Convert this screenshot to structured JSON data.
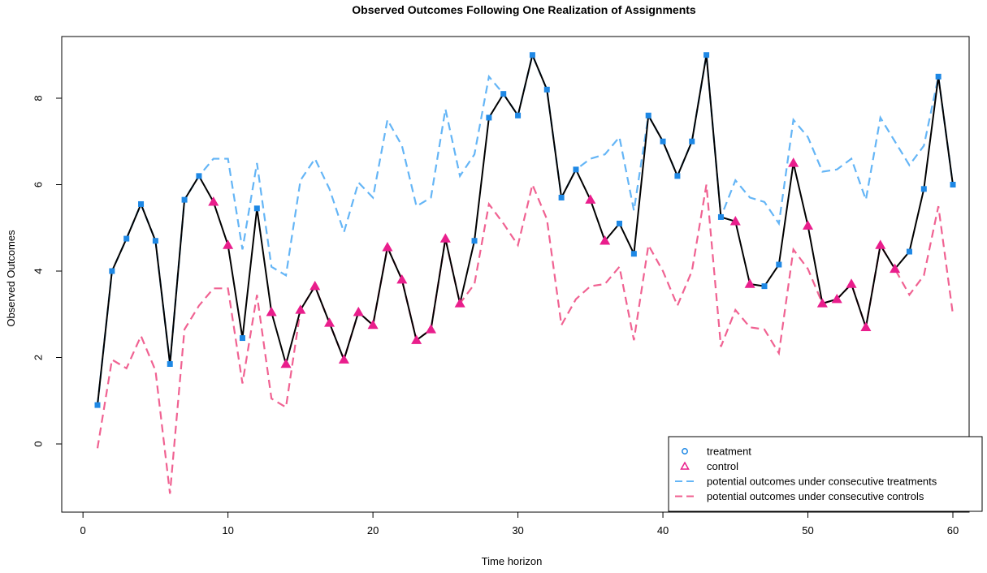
{
  "chart_data": {
    "type": "line",
    "title": "Observed Outcomes Following One Realization of Assignments",
    "xlabel": "Time horizon",
    "ylabel": "Observed Outcomes",
    "xlim": [
      1,
      60
    ],
    "ylim": [
      -1.2,
      9.1
    ],
    "x_ticks": [
      0,
      10,
      20,
      30,
      40,
      50,
      60
    ],
    "y_ticks": [
      0,
      2,
      4,
      6,
      8
    ],
    "grid": false,
    "legend_position": "bottom-right",
    "colors": {
      "treatment": "#1e88e5",
      "control": "#e91e8c",
      "potential_treatment": "#64b5f6",
      "potential_control": "#f06292",
      "observed_line": "#000000"
    },
    "x": [
      1,
      2,
      3,
      4,
      5,
      6,
      7,
      8,
      9,
      10,
      11,
      12,
      13,
      14,
      15,
      16,
      17,
      18,
      19,
      20,
      21,
      22,
      23,
      24,
      25,
      26,
      27,
      28,
      29,
      30,
      31,
      32,
      33,
      34,
      35,
      36,
      37,
      38,
      39,
      40,
      41,
      42,
      43,
      44,
      45,
      46,
      47,
      48,
      49,
      50,
      51,
      52,
      53,
      54,
      55,
      56,
      57,
      58,
      59,
      60
    ],
    "assignment": [
      "T",
      "T",
      "T",
      "T",
      "T",
      "T",
      "T",
      "T",
      "C",
      "C",
      "T",
      "T",
      "C",
      "C",
      "C",
      "C",
      "C",
      "C",
      "C",
      "C",
      "C",
      "C",
      "C",
      "C",
      "C",
      "C",
      "T",
      "T",
      "T",
      "T",
      "T",
      "T",
      "T",
      "T",
      "C",
      "C",
      "T",
      "T",
      "T",
      "T",
      "T",
      "T",
      "T",
      "T",
      "C",
      "C",
      "T",
      "T",
      "C",
      "C",
      "C",
      "C",
      "C",
      "C",
      "C",
      "C",
      "T",
      "T",
      "T",
      "T"
    ],
    "observed": [
      0.9,
      4.0,
      4.75,
      5.55,
      4.7,
      1.85,
      5.65,
      6.2,
      5.6,
      4.6,
      2.45,
      5.45,
      3.05,
      1.85,
      3.1,
      3.65,
      2.8,
      1.95,
      3.05,
      2.75,
      4.55,
      3.8,
      2.4,
      2.65,
      4.75,
      3.25,
      4.7,
      7.55,
      8.1,
      7.6,
      9.0,
      8.2,
      5.7,
      6.35,
      5.65,
      4.7,
      5.1,
      4.4,
      7.6,
      7.0,
      6.2,
      7.0,
      9.0,
      5.25,
      5.15,
      3.7,
      3.65,
      4.15,
      6.5,
      5.05,
      3.25,
      3.35,
      3.7,
      2.7,
      4.6,
      4.05,
      4.45,
      5.9,
      8.5,
      6.0
    ],
    "series": [
      {
        "name": "potential outcomes under consecutive treatments",
        "values": [
          0.9,
          4.0,
          4.75,
          5.55,
          4.7,
          1.85,
          5.65,
          6.2,
          6.6,
          6.6,
          4.5,
          6.5,
          4.1,
          3.9,
          6.1,
          6.6,
          5.9,
          4.9,
          6.05,
          5.7,
          7.5,
          6.9,
          5.5,
          5.7,
          7.75,
          6.2,
          6.7,
          8.5,
          8.1,
          7.6,
          9.0,
          8.2,
          5.7,
          6.35,
          6.6,
          6.7,
          7.1,
          5.4,
          7.6,
          7.0,
          6.2,
          7.0,
          9.0,
          5.25,
          6.1,
          5.7,
          5.6,
          5.1,
          7.5,
          7.1,
          6.3,
          6.35,
          6.6,
          5.65,
          7.55,
          7.0,
          6.45,
          6.9,
          8.5,
          6.0
        ]
      },
      {
        "name": "potential outcomes under consecutive controls",
        "values": [
          -0.1,
          1.95,
          1.75,
          2.5,
          1.7,
          -1.15,
          2.65,
          3.2,
          3.6,
          3.6,
          1.4,
          3.45,
          1.05,
          0.85,
          3.1,
          3.65,
          2.8,
          1.95,
          3.05,
          2.75,
          4.55,
          3.8,
          2.4,
          2.65,
          4.75,
          3.25,
          3.7,
          5.55,
          5.1,
          4.6,
          6.0,
          5.2,
          2.75,
          3.35,
          3.65,
          3.7,
          4.1,
          2.4,
          4.6,
          4.0,
          3.2,
          4.0,
          6.0,
          2.25,
          3.1,
          2.7,
          2.65,
          2.1,
          4.5,
          4.05,
          3.25,
          3.35,
          3.7,
          2.7,
          4.6,
          4.05,
          3.45,
          3.9,
          5.5,
          3.0
        ]
      }
    ],
    "legend": [
      {
        "label": "treatment",
        "symbol": "circle"
      },
      {
        "label": "control",
        "symbol": "triangle"
      },
      {
        "label": "potential outcomes under consecutive treatments",
        "symbol": "dashed-line"
      },
      {
        "label": "potential outcomes under consecutive controls",
        "symbol": "dashed-line"
      }
    ]
  }
}
